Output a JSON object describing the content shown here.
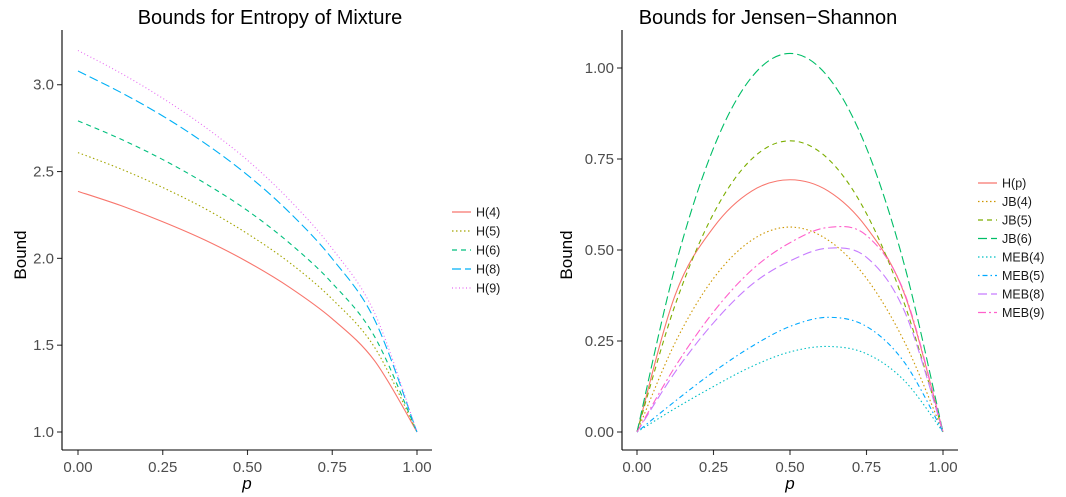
{
  "chart_data": [
    {
      "type": "line",
      "title": "Bounds for Entropy of Mixture",
      "xlabel": "p",
      "ylabel": "Bound",
      "xlim": [
        0,
        1
      ],
      "ylim": [
        1.0,
        3.2
      ],
      "xticks": [
        "0.00",
        "0.25",
        "0.50",
        "0.75",
        "1.00"
      ],
      "yticks": [
        "1.0",
        "1.5",
        "2.0",
        "2.5",
        "3.0"
      ],
      "grid": false,
      "legend_position": "right",
      "x": [
        0,
        0.125,
        0.25,
        0.375,
        0.5,
        0.625,
        0.75,
        0.875,
        1
      ],
      "series": [
        {
          "name": "H(4)",
          "color": "#F8766D",
          "dash": "solid",
          "values": [
            2.386,
            2.305,
            2.211,
            2.105,
            1.98,
            1.832,
            1.652,
            1.41,
            1.0
          ]
        },
        {
          "name": "H(5)",
          "color": "#A3A500",
          "dash": "dotted",
          "values": [
            2.609,
            2.516,
            2.408,
            2.286,
            2.142,
            1.974,
            1.765,
            1.487,
            1.0
          ]
        },
        {
          "name": "H(6)",
          "color": "#00BF7D",
          "dash": "dashed",
          "values": [
            2.792,
            2.688,
            2.569,
            2.432,
            2.275,
            2.086,
            1.857,
            1.549,
            1.0
          ]
        },
        {
          "name": "H(8)",
          "color": "#00B0F6",
          "dash": "longdash",
          "values": [
            3.079,
            2.957,
            2.82,
            2.662,
            2.48,
            2.262,
            1.998,
            1.646,
            1.0
          ]
        },
        {
          "name": "H(9)",
          "color": "#E76BF3",
          "dash": "dotdash-fine",
          "values": [
            3.197,
            3.068,
            2.922,
            2.756,
            2.565,
            2.334,
            2.056,
            1.685,
            1.0
          ]
        }
      ]
    },
    {
      "type": "line",
      "title": "Bounds for Jensen−Shannon",
      "xlabel": "p",
      "ylabel": "Bound",
      "xlim": [
        0,
        1
      ],
      "ylim": [
        0,
        1.05
      ],
      "xticks": [
        "0.00",
        "0.25",
        "0.50",
        "0.75",
        "1.00"
      ],
      "yticks": [
        "0.00",
        "0.25",
        "0.50",
        "0.75",
        "1.00"
      ],
      "grid": false,
      "legend_position": "right",
      "x": [
        0,
        0.125,
        0.25,
        0.375,
        0.5,
        0.625,
        0.75,
        0.875,
        1
      ],
      "series": [
        {
          "name": "H(p)",
          "color": "#F8766D",
          "dash": "solid",
          "values": [
            0,
            0.377,
            0.562,
            0.662,
            0.693,
            0.662,
            0.562,
            0.377,
            0
          ]
        },
        {
          "name": "JB(4)",
          "color": "#CD9600",
          "dash": "dotted",
          "values": [
            0,
            0.246,
            0.422,
            0.527,
            0.563,
            0.527,
            0.422,
            0.246,
            0
          ]
        },
        {
          "name": "JB(5)",
          "color": "#7CAE00",
          "dash": "dashed",
          "values": [
            0,
            0.35,
            0.6,
            0.75,
            0.8,
            0.75,
            0.6,
            0.35,
            0
          ]
        },
        {
          "name": "JB(6)",
          "color": "#00BE67",
          "dash": "longdash",
          "values": [
            0,
            0.455,
            0.78,
            0.975,
            1.04,
            0.975,
            0.78,
            0.455,
            0
          ]
        },
        {
          "name": "MEB(4)",
          "color": "#00BFC4",
          "dash": "dotted",
          "values": [
            0,
            0.065,
            0.125,
            0.18,
            0.22,
            0.235,
            0.215,
            0.14,
            0
          ]
        },
        {
          "name": "MEB(5)",
          "color": "#00A9FF",
          "dash": "dotdash",
          "values": [
            0,
            0.085,
            0.165,
            0.235,
            0.29,
            0.315,
            0.29,
            0.19,
            0
          ]
        },
        {
          "name": "MEB(8)",
          "color": "#C77CFF",
          "dash": "longdash",
          "values": [
            0,
            0.165,
            0.3,
            0.405,
            0.47,
            0.505,
            0.48,
            0.33,
            0
          ]
        },
        {
          "name": "MEB(9)",
          "color": "#FF61CC",
          "dash": "twodash",
          "values": [
            0,
            0.18,
            0.33,
            0.445,
            0.52,
            0.562,
            0.54,
            0.38,
            0
          ]
        }
      ]
    }
  ]
}
